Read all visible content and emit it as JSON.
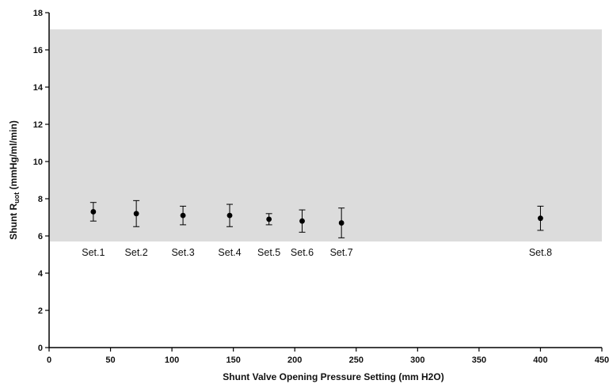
{
  "chart_data": {
    "type": "scatter",
    "title": "",
    "xlabel": "Shunt Valve Opening Pressure Setting (mm H2O)",
    "ylabel": {
      "main": "Shunt R",
      "sub": "uot",
      "unit": " (mmHg/ml/min)"
    },
    "xlim": [
      0,
      450
    ],
    "ylim": [
      0,
      18
    ],
    "x_ticks": [
      0,
      50,
      100,
      150,
      200,
      250,
      300,
      350,
      400,
      450
    ],
    "y_ticks": [
      0,
      2,
      4,
      6,
      8,
      10,
      12,
      14,
      16,
      18
    ],
    "grid": false,
    "reference_band": {
      "y_from": 5.7,
      "y_to": 17.1,
      "x_from": 0,
      "x_to": 450,
      "color": "#dcdcdc"
    },
    "marker_color": "#000000",
    "points": [
      {
        "label": "Set.1",
        "x": 36,
        "y": 7.3,
        "err_low": 6.8,
        "err_high": 7.8
      },
      {
        "label": "Set.2",
        "x": 71,
        "y": 7.2,
        "err_low": 6.5,
        "err_high": 7.9
      },
      {
        "label": "Set.3",
        "x": 109,
        "y": 7.1,
        "err_low": 6.6,
        "err_high": 7.6
      },
      {
        "label": "Set.4",
        "x": 147,
        "y": 7.1,
        "err_low": 6.5,
        "err_high": 7.7
      },
      {
        "label": "Set.5",
        "x": 179,
        "y": 6.9,
        "err_low": 6.6,
        "err_high": 7.2
      },
      {
        "label": "Set.6",
        "x": 206,
        "y": 6.8,
        "err_low": 6.2,
        "err_high": 7.4
      },
      {
        "label": "Set.7",
        "x": 238,
        "y": 6.7,
        "err_low": 5.9,
        "err_high": 7.5
      },
      {
        "label": "Set.8",
        "x": 400,
        "y": 6.95,
        "err_low": 6.3,
        "err_high": 7.6
      }
    ]
  }
}
